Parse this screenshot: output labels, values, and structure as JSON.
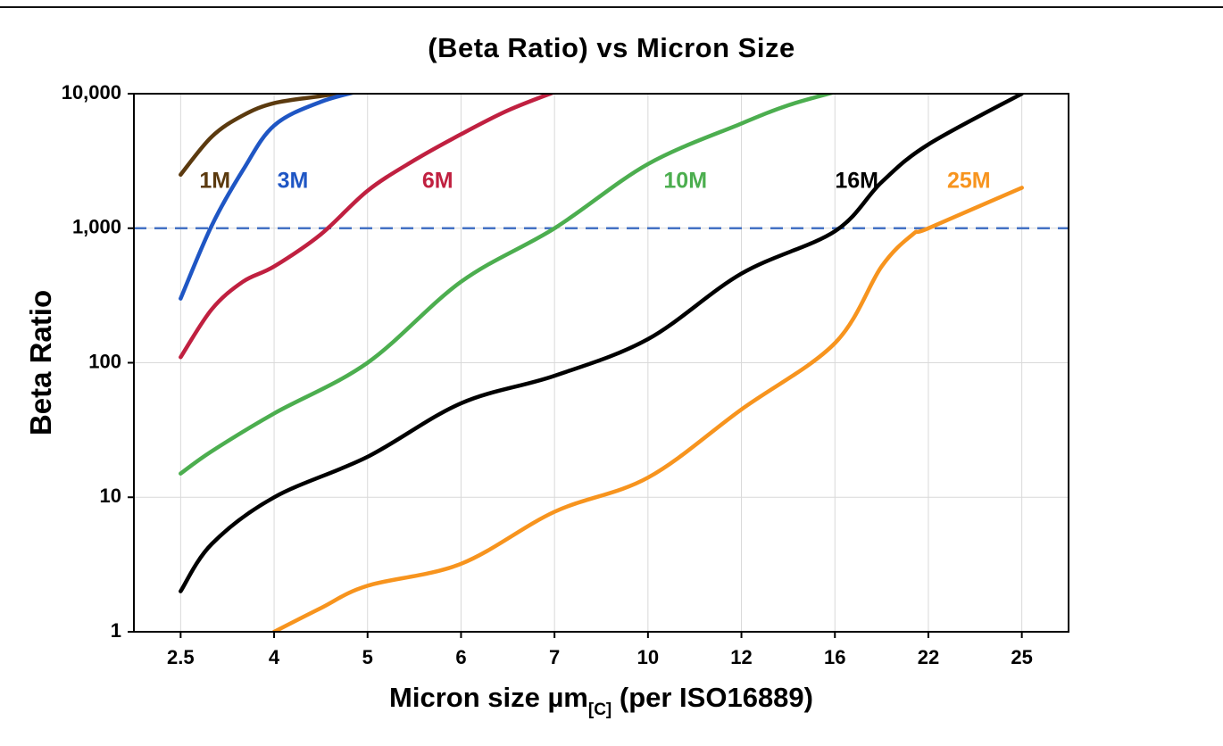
{
  "chart_data": {
    "type": "line",
    "title": "(Beta Ratio) vs Micron Size",
    "ylabel": "Beta Ratio",
    "xlabel": {
      "main": "Micron size µm",
      "subscript": "[C]",
      "rest": " (per ISO16889)"
    },
    "y_scale": "log",
    "ylim": [
      1,
      10000
    ],
    "x_ticks": [
      2.5,
      4,
      5,
      6,
      7,
      10,
      12,
      16,
      22,
      25
    ],
    "x_tick_labels": [
      "2.5",
      "4",
      "5",
      "6",
      "7",
      "10",
      "12",
      "16",
      "22",
      "25"
    ],
    "y_ticks": [
      1,
      10,
      100,
      1000,
      10000
    ],
    "y_tick_labels": [
      "1",
      "10",
      "100",
      "1,000",
      "10,000"
    ],
    "grid": true,
    "grid_color": "#d9d9d9",
    "axis_color": "#000000",
    "legend_position": "inline-labels",
    "reference_line": {
      "value": 1000,
      "color": "#4472c4",
      "style": "dashed"
    },
    "series": [
      {
        "name": "1M",
        "color": "#5b3a0f",
        "label": {
          "x": 3.05,
          "y": 2200
        },
        "points": [
          [
            2.5,
            2500
          ],
          [
            3,
            4800
          ],
          [
            3.5,
            6900
          ],
          [
            4,
            8500
          ],
          [
            4.5,
            9600
          ],
          [
            5,
            10800
          ]
        ]
      },
      {
        "name": "3M",
        "color": "#1f56c4",
        "label": {
          "x": 4.2,
          "y": 2200
        },
        "points": [
          [
            2.5,
            300
          ],
          [
            3,
            1050
          ],
          [
            3.5,
            2700
          ],
          [
            4,
            5800
          ],
          [
            4.5,
            8700
          ],
          [
            5,
            10800
          ]
        ]
      },
      {
        "name": "6M",
        "color": "#c02040",
        "label": {
          "x": 5.75,
          "y": 2200
        },
        "points": [
          [
            2.5,
            110
          ],
          [
            3,
            250
          ],
          [
            3.5,
            400
          ],
          [
            4,
            520
          ],
          [
            4.5,
            900
          ],
          [
            5,
            1900
          ],
          [
            5.5,
            3200
          ],
          [
            6,
            5000
          ],
          [
            6.5,
            7500
          ],
          [
            7,
            10300
          ]
        ]
      },
      {
        "name": "10M",
        "color": "#4cae4f",
        "label": {
          "x": 10.8,
          "y": 2200
        },
        "points": [
          [
            2.5,
            15
          ],
          [
            3,
            22
          ],
          [
            4,
            42
          ],
          [
            5,
            100
          ],
          [
            6,
            400
          ],
          [
            7,
            1000
          ],
          [
            10,
            3000
          ],
          [
            12,
            6000
          ],
          [
            14,
            8200
          ],
          [
            16,
            10300
          ]
        ]
      },
      {
        "name": "16M",
        "color": "#000000",
        "label": {
          "x": 17.4,
          "y": 2200
        },
        "points": [
          [
            2.5,
            2
          ],
          [
            3,
            4.5
          ],
          [
            4,
            10
          ],
          [
            5,
            20
          ],
          [
            6,
            50
          ],
          [
            7,
            80
          ],
          [
            10,
            150
          ],
          [
            12,
            460
          ],
          [
            16,
            950
          ],
          [
            19,
            2200
          ],
          [
            22,
            4200
          ],
          [
            25,
            10000
          ]
        ]
      },
      {
        "name": "25M",
        "color": "#f7941e",
        "label": {
          "x": 23.3,
          "y": 2200
        },
        "points": [
          [
            4,
            1
          ],
          [
            4.5,
            1.5
          ],
          [
            5,
            2.2
          ],
          [
            6,
            3.2
          ],
          [
            7,
            7.8
          ],
          [
            10,
            14
          ],
          [
            12,
            45
          ],
          [
            16,
            140
          ],
          [
            19,
            520
          ],
          [
            21,
            900
          ],
          [
            22,
            1000
          ],
          [
            25,
            2000
          ]
        ]
      }
    ]
  }
}
